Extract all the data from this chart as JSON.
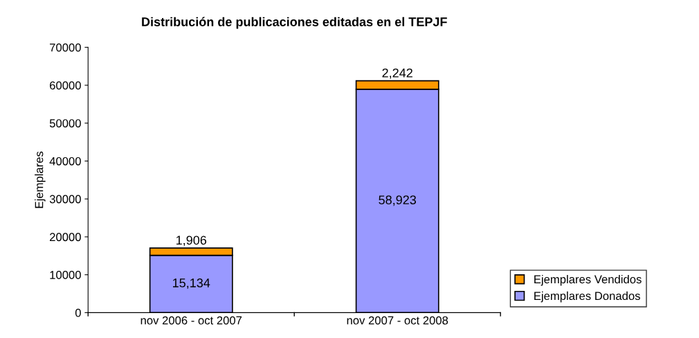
{
  "chart_data": {
    "type": "bar",
    "title": "Distribución de publicaciones editadas en el TEPJF",
    "ylabel": "Ejemplares",
    "categories": [
      "nov 2006 - oct 2007",
      "nov 2007 - oct 2008"
    ],
    "stacked": true,
    "series": [
      {
        "name": "Ejemplares Donados",
        "color": "#9999ff",
        "values": [
          15134,
          58923
        ],
        "value_labels": [
          "15,134",
          "58,923"
        ]
      },
      {
        "name": "Ejemplares Vendidos",
        "color": "#ff9900",
        "values": [
          1906,
          2242
        ],
        "value_labels": [
          "1,906",
          "2,242"
        ]
      }
    ],
    "ylim": [
      0,
      70000
    ],
    "yticks": [
      0,
      10000,
      20000,
      30000,
      40000,
      50000,
      60000,
      70000
    ],
    "grid": false,
    "legend": "right"
  }
}
